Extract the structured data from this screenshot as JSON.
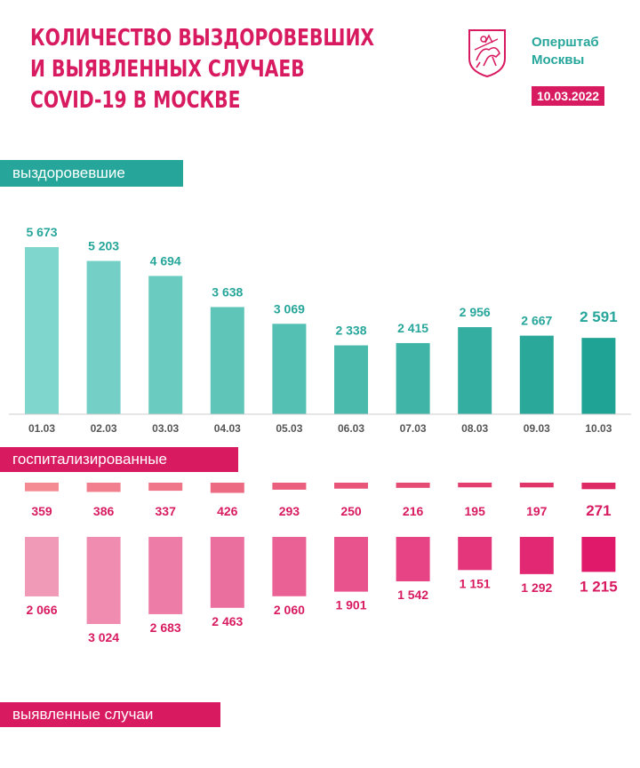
{
  "header": {
    "title_lines": [
      "Количество выздоровевших",
      "и выявленных случаев",
      "COVID-19 в Москве"
    ],
    "brand_lines": [
      "Оперштаб",
      "Москвы"
    ],
    "date": "10.03.2022"
  },
  "sections": {
    "recovered": "выздоровевшие",
    "hospitalized": "госпитализированные",
    "cases": "выявленные случаи"
  },
  "colors": {
    "accent_pink": "#d81b60",
    "accent_teal": "#26a69a",
    "recovered_start": "#7fd6cc",
    "recovered_end": "#1fa394",
    "pink_light": "#f19ab8",
    "pink_dark": "#e0196a",
    "hosp_light": "#f48a92",
    "hosp_dark": "#de2a64"
  },
  "chart_data": [
    {
      "type": "bar",
      "name": "выздоровевшие",
      "categories": [
        "01.03",
        "02.03",
        "03.03",
        "04.03",
        "05.03",
        "06.03",
        "07.03",
        "08.03",
        "09.03",
        "10.03"
      ],
      "values": [
        5673,
        5203,
        4694,
        3638,
        3069,
        2338,
        2415,
        2956,
        2667,
        2591
      ],
      "labels": [
        "5 673",
        "5 203",
        "4 694",
        "3 638",
        "3 069",
        "2 338",
        "2 415",
        "2 956",
        "2 667",
        "2 591"
      ]
    },
    {
      "type": "bar",
      "name": "госпитализированные",
      "categories": [
        "01.03",
        "02.03",
        "03.03",
        "04.03",
        "05.03",
        "06.03",
        "07.03",
        "08.03",
        "09.03",
        "10.03"
      ],
      "values": [
        359,
        386,
        337,
        426,
        293,
        250,
        216,
        195,
        197,
        271
      ],
      "labels": [
        "359",
        "386",
        "337",
        "426",
        "293",
        "250",
        "216",
        "195",
        "197",
        "271"
      ]
    },
    {
      "type": "bar",
      "name": "выявленные случаи",
      "categories": [
        "01.03",
        "02.03",
        "03.03",
        "04.03",
        "05.03",
        "06.03",
        "07.03",
        "08.03",
        "09.03",
        "10.03"
      ],
      "values": [
        2066,
        3024,
        2683,
        2463,
        2060,
        1901,
        1542,
        1151,
        1292,
        1215
      ],
      "labels": [
        "2 066",
        "3 024",
        "2 683",
        "2 463",
        "2 060",
        "1 901",
        "1 542",
        "1 151",
        "1 292",
        "1 215"
      ]
    }
  ]
}
